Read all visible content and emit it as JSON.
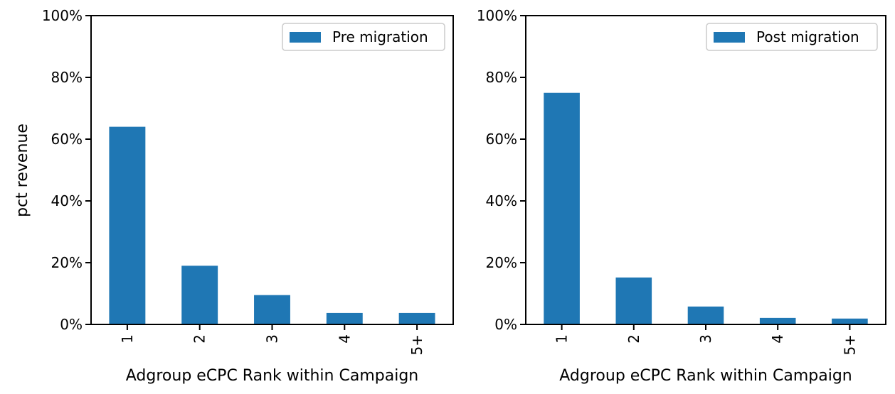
{
  "colors": {
    "bar": "#1f77b4",
    "axis": "#000000",
    "legend_border": "#cccccc"
  },
  "chart_data": [
    {
      "type": "bar",
      "categories": [
        "1",
        "2",
        "3",
        "4",
        "5+"
      ],
      "series": [
        {
          "name": "Pre migration",
          "values": [
            64,
            19,
            9.5,
            3.7,
            3.7
          ]
        }
      ],
      "ylim": [
        0,
        100
      ],
      "yticks": [
        "0%",
        "20%",
        "40%",
        "60%",
        "80%",
        "100%"
      ],
      "ylabel": "pct revenue",
      "xlabel": "Adgroup eCPC Rank within Campaign",
      "legend": "top-right",
      "grid": false
    },
    {
      "type": "bar",
      "categories": [
        "1",
        "2",
        "3",
        "4",
        "5+"
      ],
      "series": [
        {
          "name": "Post migration",
          "values": [
            75,
            15.2,
            5.8,
            2.1,
            1.9
          ]
        }
      ],
      "ylim": [
        0,
        100
      ],
      "yticks": [
        "0%",
        "20%",
        "40%",
        "60%",
        "80%",
        "100%"
      ],
      "ylabel": "",
      "xlabel": "Adgroup eCPC Rank within Campaign",
      "legend": "top-right",
      "grid": false
    }
  ]
}
